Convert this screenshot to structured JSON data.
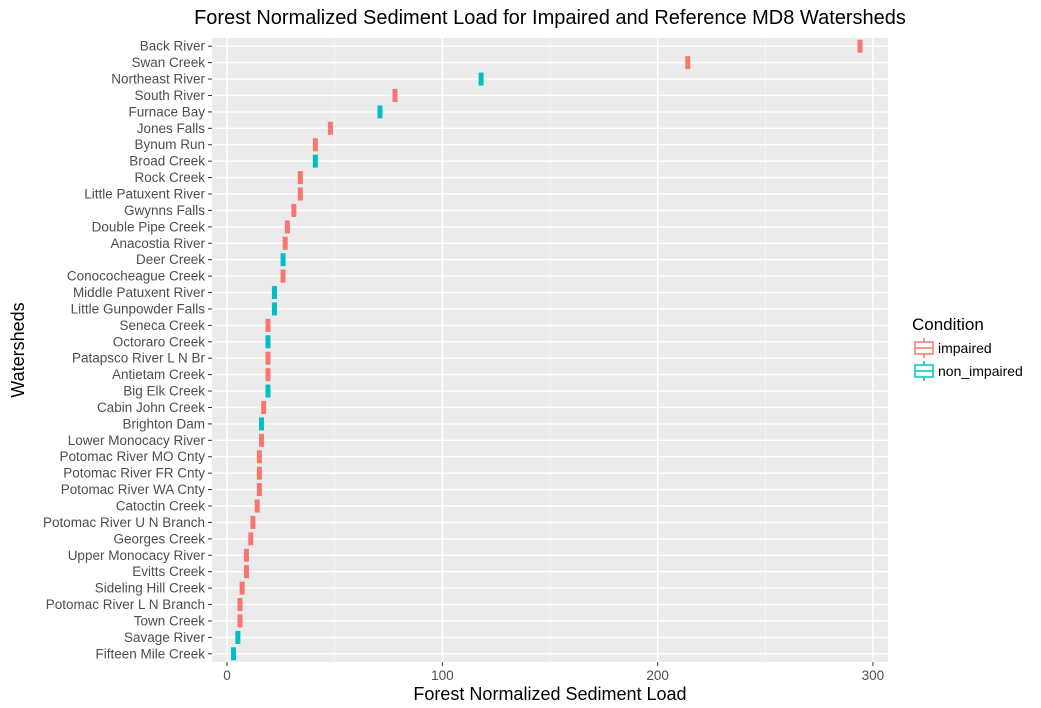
{
  "chart_data": {
    "type": "boxplot",
    "orientation": "horizontal",
    "title": "Forest Normalized Sediment Load for Impaired and Reference MD8 Watersheds",
    "xlabel": "Forest Normalized Sediment Load",
    "ylabel": "Watersheds",
    "xlim": [
      -7,
      307
    ],
    "xticks": [
      0,
      100,
      200,
      300
    ],
    "xtick_labels": [
      "0",
      "100",
      "200",
      "300"
    ],
    "grid": true,
    "legend": {
      "title": "Condition",
      "position": "right",
      "entries": [
        {
          "label": "impaired",
          "key": "impaired",
          "color": "#F8766D"
        },
        {
          "label": "non_impaired",
          "key": "non_impaired",
          "color": "#00BFC4"
        }
      ]
    },
    "categories": [
      "Back River",
      "Swan Creek",
      "Northeast River",
      "South River",
      "Furnace Bay",
      "Jones Falls",
      "Bynum Run",
      "Broad Creek",
      "Rock Creek",
      "Little Patuxent River",
      "Gwynns Falls",
      "Double Pipe Creek",
      "Anacostia River",
      "Deer Creek",
      "Conococheague Creek",
      "Middle Patuxent River",
      "Little Gunpowder Falls",
      "Seneca Creek",
      "Octoraro Creek",
      "Patapsco River L N Br",
      "Antietam Creek",
      "Big Elk Creek",
      "Cabin John Creek",
      "Brighton Dam",
      "Lower Monocacy River",
      "Potomac River MO Cnty",
      "Potomac River FR Cnty",
      "Potomac River WA Cnty",
      "Catoctin Creek",
      "Potomac River U N Branch",
      "Georges Creek",
      "Upper Monocacy River",
      "Evitts Creek",
      "Sideling Hill Creek",
      "Potomac River L N Branch",
      "Town Creek",
      "Savage River",
      "Fifteen Mile Creek"
    ],
    "values": [
      294,
      214,
      118,
      78,
      71,
      48,
      41,
      41,
      34,
      34,
      31,
      28,
      27,
      26,
      26,
      22,
      22,
      19,
      19,
      19,
      19,
      19,
      17,
      16,
      16,
      15,
      15,
      15,
      14,
      12,
      11,
      9,
      9,
      7,
      6,
      6,
      5,
      3
    ],
    "conditions": [
      "impaired",
      "impaired",
      "non_impaired",
      "impaired",
      "non_impaired",
      "impaired",
      "impaired",
      "non_impaired",
      "impaired",
      "impaired",
      "impaired",
      "impaired",
      "impaired",
      "non_impaired",
      "impaired",
      "non_impaired",
      "non_impaired",
      "impaired",
      "non_impaired",
      "impaired",
      "impaired",
      "non_impaired",
      "impaired",
      "non_impaired",
      "impaired",
      "impaired",
      "impaired",
      "impaired",
      "impaired",
      "impaired",
      "impaired",
      "impaired",
      "impaired",
      "impaired",
      "impaired",
      "impaired",
      "non_impaired",
      "non_impaired"
    ]
  }
}
